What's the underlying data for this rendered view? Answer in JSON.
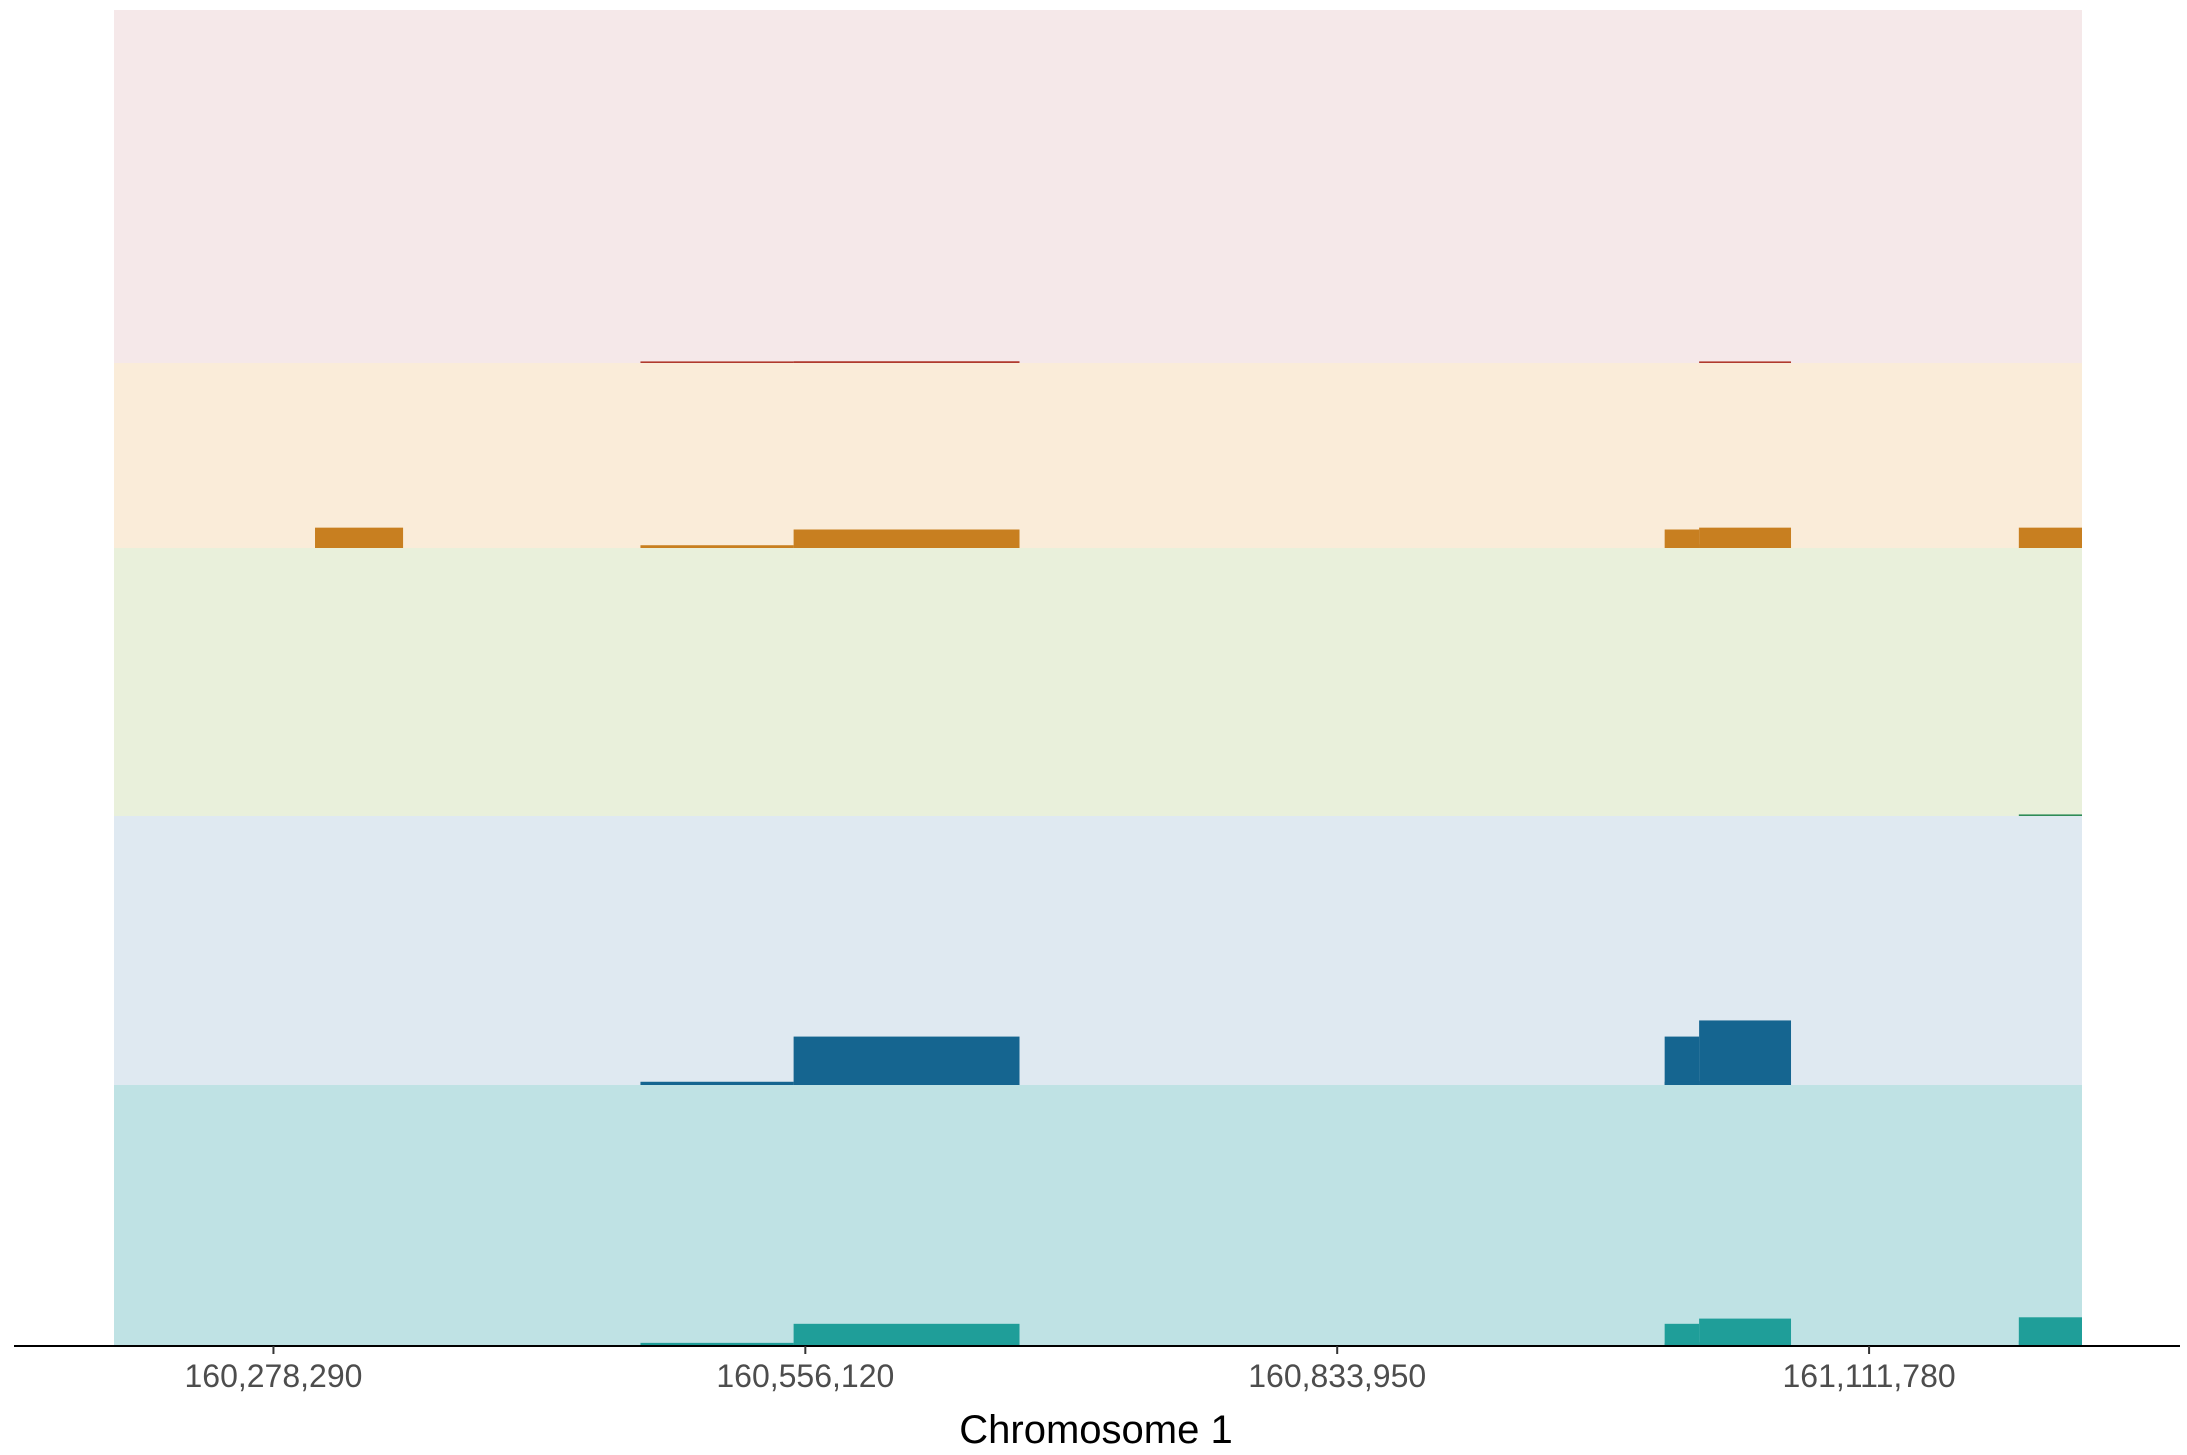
{
  "chart_data": {
    "type": "area",
    "title": "",
    "xlabel": "Chromosome 1",
    "ylabel": "",
    "xlim": [
      160195000,
      161223000
    ],
    "x_ticks": [
      160278290,
      160556120,
      160833950,
      161111780
    ],
    "x_tick_labels": [
      "160,278,290",
      "160,556,120",
      "160,833,950",
      "161,111,780"
    ],
    "grid": false,
    "legend": "none",
    "tracks": [
      {
        "background": "#f5e8e9",
        "color": "#b03a2e",
        "ylim": [
          0,
          1
        ],
        "segments": [
          {
            "x0": 160470000,
            "x1": 160550000,
            "y": 0.003
          },
          {
            "x0": 160550000,
            "x1": 160668000,
            "y": 0.005
          },
          {
            "x0": 161023000,
            "x1": 161071000,
            "y": 0.003
          }
        ]
      },
      {
        "background": "#faecd9",
        "color": "#c87f20",
        "ylim": [
          0,
          1
        ],
        "segments": [
          {
            "x0": 160300000,
            "x1": 160346000,
            "y": 0.11
          },
          {
            "x0": 160470000,
            "x1": 160550000,
            "y": 0.015
          },
          {
            "x0": 160550000,
            "x1": 160668000,
            "y": 0.1
          },
          {
            "x0": 161005000,
            "x1": 161023000,
            "y": 0.1
          },
          {
            "x0": 161023000,
            "x1": 161071000,
            "y": 0.11
          },
          {
            "x0": 161023000,
            "x1": 161071000,
            "y": 0.02
          },
          {
            "x0": 161190000,
            "x1": 161223000,
            "y": 0.11
          }
        ]
      },
      {
        "background": "#e9f0db",
        "color": "#2e8b57",
        "ylim": [
          0,
          1
        ],
        "segments": [
          {
            "x0": 161190000,
            "x1": 161223000,
            "y": 0.004
          }
        ]
      },
      {
        "background": "#dfe9f1",
        "color": "#156590",
        "ylim": [
          0,
          1
        ],
        "segments": [
          {
            "x0": 160470000,
            "x1": 160550000,
            "y": 0.012
          },
          {
            "x0": 160550000,
            "x1": 160668000,
            "y": 0.18
          },
          {
            "x0": 161005000,
            "x1": 161023000,
            "y": 0.18
          },
          {
            "x0": 161023000,
            "x1": 161071000,
            "y": 0.24
          },
          {
            "x0": 161005000,
            "x1": 161023000,
            "y": 0.012
          },
          {
            "x0": 161023000,
            "x1": 161071000,
            "y": 0.015
          }
        ]
      },
      {
        "background": "#bfe2e4",
        "color": "#1f9e99",
        "ylim": [
          0,
          1
        ],
        "segments": [
          {
            "x0": 160470000,
            "x1": 160550000,
            "y": 0.012
          },
          {
            "x0": 160550000,
            "x1": 160668000,
            "y": 0.085
          },
          {
            "x0": 161005000,
            "x1": 161023000,
            "y": 0.085
          },
          {
            "x0": 161023000,
            "x1": 161071000,
            "y": 0.105
          },
          {
            "x0": 161005000,
            "x1": 161023000,
            "y": 0.012
          },
          {
            "x0": 161023000,
            "x1": 161071000,
            "y": 0.015
          },
          {
            "x0": 161190000,
            "x1": 161223000,
            "y": 0.11
          },
          {
            "x0": 161190000,
            "x1": 161223000,
            "y": 0.02
          }
        ]
      }
    ]
  }
}
